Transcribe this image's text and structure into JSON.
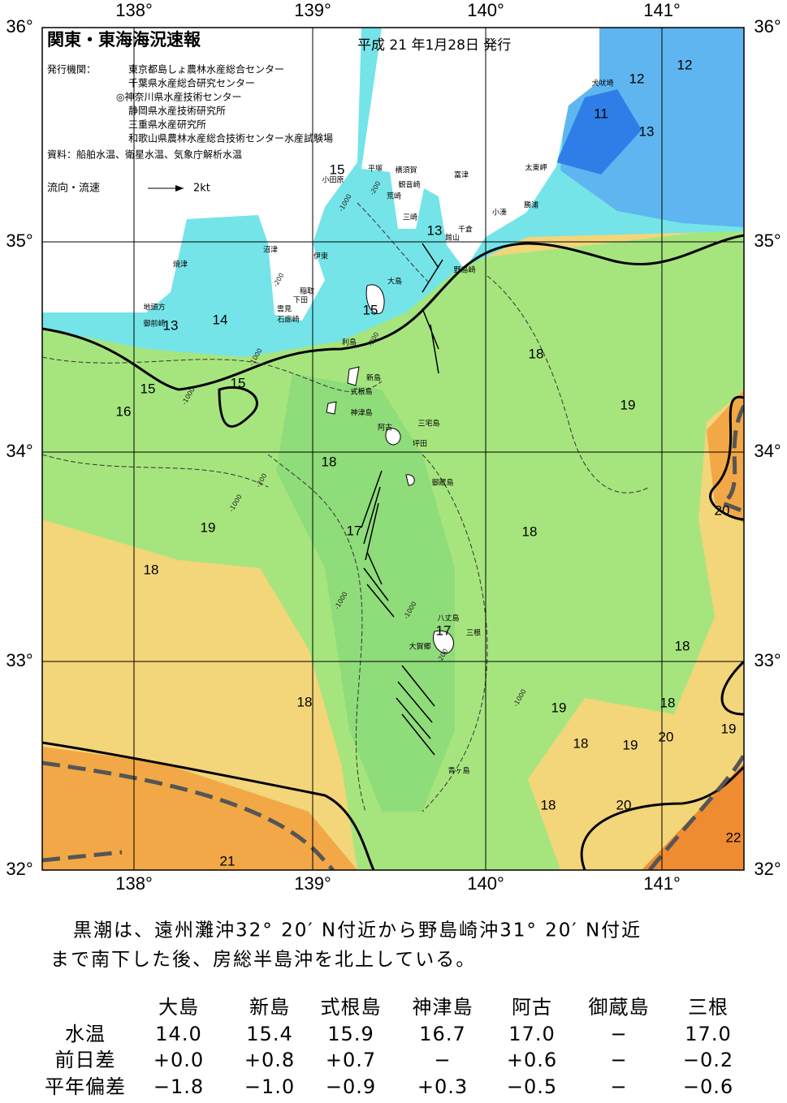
{
  "header": {
    "title": "関東・東海海況速報",
    "issued": "平成 21 年1月28日 発行"
  },
  "agencies": {
    "label": "発行機関：",
    "names": [
      "東京都島しょ農林水産総合センター",
      "千葉県水産総合研究センター",
      "◎神奈川県水産技術センター",
      "静岡県水産技術研究所",
      "三重県水産研究所",
      "和歌山県農林水産総合技術センター水産試験場"
    ]
  },
  "source": "資料：船舶水温、衛星水温、気象庁解析水温",
  "legend": {
    "label": "流向・流速",
    "speed": "2kt"
  },
  "axes": {
    "longitudes": [
      "138°",
      "139°",
      "140°",
      "141°"
    ],
    "latitudes": [
      "36°",
      "35°",
      "34°",
      "33°",
      "32°"
    ]
  },
  "places": [
    "犬吠埼",
    "太東岬",
    "勝浦",
    "小湊",
    "富津",
    "千倉",
    "館山",
    "横須賀",
    "観音崎",
    "荒崎",
    "三崎",
    "平塚",
    "小田原",
    "野島崎",
    "大島",
    "伊東",
    "沼津",
    "稲取",
    "下田",
    "雲見",
    "石廊崎",
    "焼津",
    "地頭方",
    "御前崎",
    "利島",
    "新島",
    "式根島",
    "神津島",
    "三宅島",
    "阿古",
    "坪田",
    "御蔵島",
    "八丈島",
    "三根",
    "大賀郷",
    "青ヶ島"
  ],
  "isotherms": [
    "12",
    "12",
    "11",
    "13",
    "15",
    "13",
    "15",
    "14",
    "13",
    "15",
    "15",
    "16",
    "18",
    "19",
    "18",
    "20",
    "19",
    "17",
    "18",
    "18",
    "17",
    "18",
    "18",
    "18",
    "19",
    "18",
    "19",
    "20",
    "19",
    "18",
    "20",
    "22",
    "21"
  ],
  "depths": [
    "-200",
    "-1000",
    "-200",
    "-1000",
    "-200",
    "-1000",
    "-200",
    "-1000",
    "-1000",
    "-1000",
    "-200",
    "-1000"
  ],
  "summary": [
    "黒潮は、遠州灘沖32° 20′ N付近から野島崎沖31° 20′ N付近",
    "まで南下した後、房総半島沖を北上している。"
  ],
  "table": {
    "columns": [
      "大島",
      "新島",
      "式根島",
      "神津島",
      "阿古",
      "御蔵島",
      "三根"
    ],
    "rows": [
      {
        "label": "水温",
        "cells": [
          "14.0",
          "15.4",
          "15.9",
          "16.7",
          "17.0",
          "−",
          "17.0"
        ]
      },
      {
        "label": "前日差",
        "cells": [
          "+0.0",
          "+0.8",
          "+0.7",
          "−",
          "+0.6",
          "−",
          "−0.2"
        ]
      },
      {
        "label": "平年偏差",
        "cells": [
          "−1.8",
          "−1.0",
          "−0.9",
          "+0.3",
          "−0.5",
          "−",
          "−0.6"
        ]
      }
    ]
  }
}
